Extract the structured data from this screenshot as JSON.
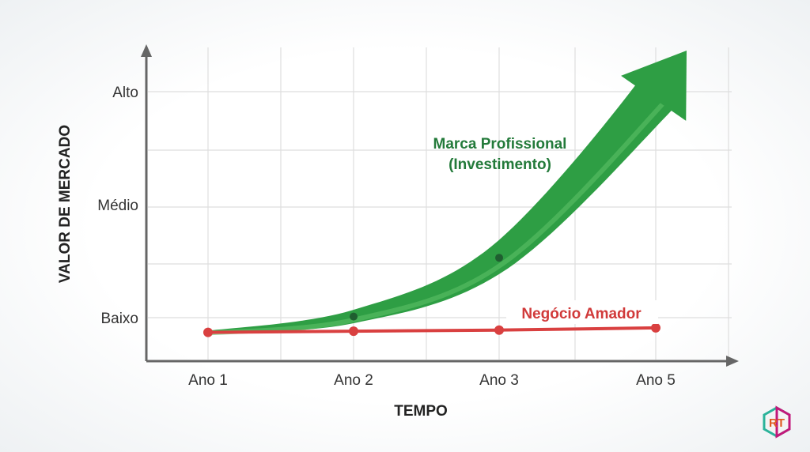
{
  "chart_data": {
    "type": "line",
    "title": "",
    "xlabel": "TEMPO",
    "ylabel": "VALOR DE MERCADO",
    "categories": [
      "Ano 1",
      "Ano 2",
      "Ano 3",
      "Ano 5"
    ],
    "y_ticks": [
      {
        "label": "Baixo",
        "value": 1
      },
      {
        "label": "Médio",
        "value": 2
      },
      {
        "label": "Alto",
        "value": 3
      }
    ],
    "ylim": [
      0.6,
      3.4
    ],
    "grid": true,
    "series": [
      {
        "name": "Marca Profissional (Investimento)",
        "name_lines": [
          "Marca Profissional",
          "(Investimento)"
        ],
        "style": "arrow",
        "color": "#2e9e44",
        "values": [
          0.87,
          1.01,
          1.53,
          2.97
        ]
      },
      {
        "name": "Negócio Amador",
        "style": "line-markers",
        "color": "#d94040",
        "values": [
          0.87,
          0.88,
          0.89,
          0.91
        ]
      }
    ]
  },
  "colors": {
    "axis": "#666666",
    "grid": "#dddddd",
    "green": "#2e9e44",
    "green_dark": "#1f7a33",
    "red": "#d94040",
    "label_green": "#237a3a",
    "label_red": "#d13a3a"
  },
  "logo": {
    "text": "RT"
  }
}
